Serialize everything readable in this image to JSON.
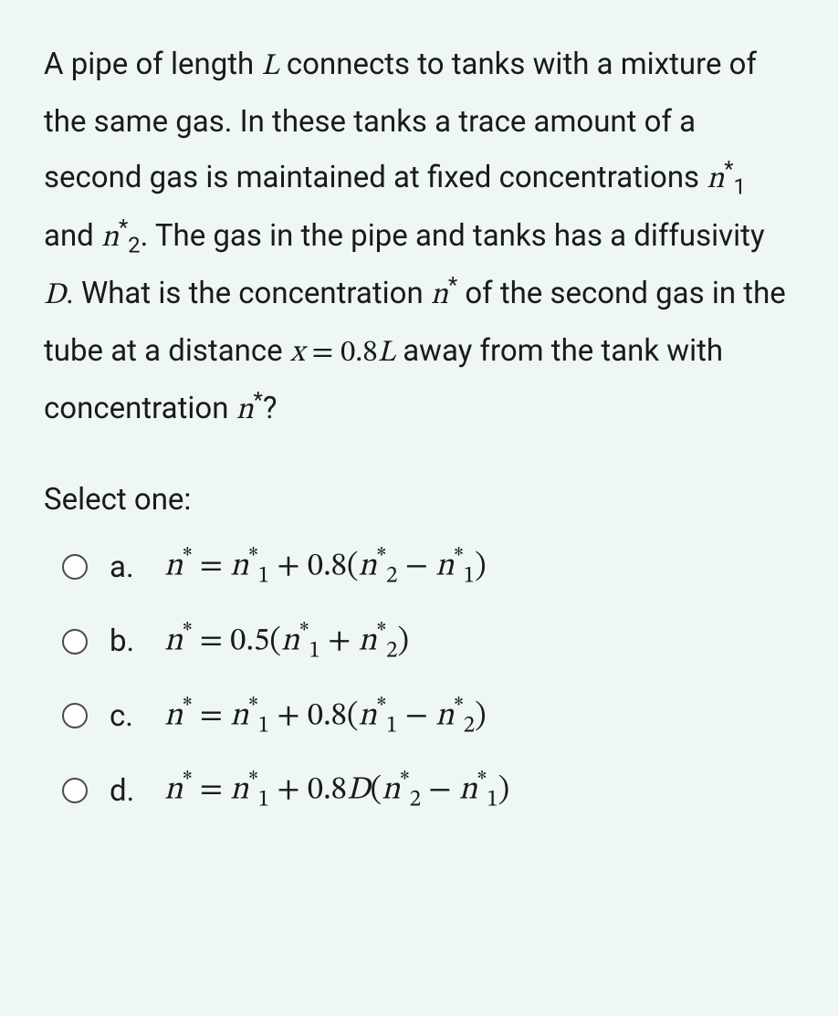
{
  "question": {
    "part1": "A pipe of length ",
    "L": "L",
    "part2": " connects to tanks with a mixture of the same gas. In these tanks a trace amount of a second gas is maintained at fixed concentrations ",
    "n1": "n",
    "n1_sub": "1",
    "n1_sup": "*",
    "and": " and ",
    "n2": "n",
    "n2_sub": "2",
    "n2_sup": "*",
    "part3": ". The gas in the pipe and tanks has a diffusivity ",
    "D": "D",
    "part4": ". What is the concentration ",
    "nstar": "n",
    "nstar_sup": "*",
    "part5": " of the second gas in the tube at a distance ",
    "x": "x",
    "eq": " = ",
    "val": "0.8",
    "L2": "L",
    "part6": " away from the tank with concentration ",
    "nstar2": "n",
    "nstar2_sup": "*",
    "qmark": "?"
  },
  "select_label": "Select one:",
  "options": {
    "a": {
      "label": "a.",
      "f_lhs_n": "n",
      "f_lhs_sup": "*",
      "f_eq": " = ",
      "t1_n": "n",
      "t1_sub": "1",
      "t1_sup": "*",
      "plus": " + ",
      "coef": "0.8",
      "lp": "(",
      "t2_n": "n",
      "t2_sub": "2",
      "t2_sup": "*",
      "minus": " − ",
      "t3_n": "n",
      "t3_sub": "1",
      "t3_sup": "*",
      "rp": ")"
    },
    "b": {
      "label": "b.",
      "f_lhs_n": "n",
      "f_lhs_sup": "*",
      "f_eq": " = ",
      "coef": "0.5",
      "lp": "(",
      "t1_n": "n",
      "t1_sub": "1",
      "t1_sup": "*",
      "plus": " + ",
      "t2_n": "n",
      "t2_sub": "2",
      "t2_sup": "*",
      "rp": ")"
    },
    "c": {
      "label": "c.",
      "f_lhs_n": "n",
      "f_lhs_sup": "*",
      "f_eq": " = ",
      "t1_n": "n",
      "t1_sub": "1",
      "t1_sup": "*",
      "plus": " + ",
      "coef": "0.8",
      "lp": "(",
      "t2_n": "n",
      "t2_sub": "1",
      "t2_sup": "*",
      "minus": " − ",
      "t3_n": "n",
      "t3_sub": "2",
      "t3_sup": "*",
      "rp": ")"
    },
    "d": {
      "label": "d.",
      "f_lhs_n": "n",
      "f_lhs_sup": "*",
      "f_eq": " = ",
      "t1_n": "n",
      "t1_sub": "1",
      "t1_sup": "*",
      "plus": " + ",
      "coef": "0.8",
      "D": "D",
      "lp": "(",
      "t2_n": "n",
      "t2_sub": "2",
      "t2_sup": "*",
      "minus": " − ",
      "t3_n": "n",
      "t3_sub": "1",
      "t3_sup": "*",
      "rp": ")"
    }
  },
  "colors": {
    "background": "#eef6f6",
    "text": "#1a1a1a",
    "radio_border": "#4a4a4a"
  }
}
